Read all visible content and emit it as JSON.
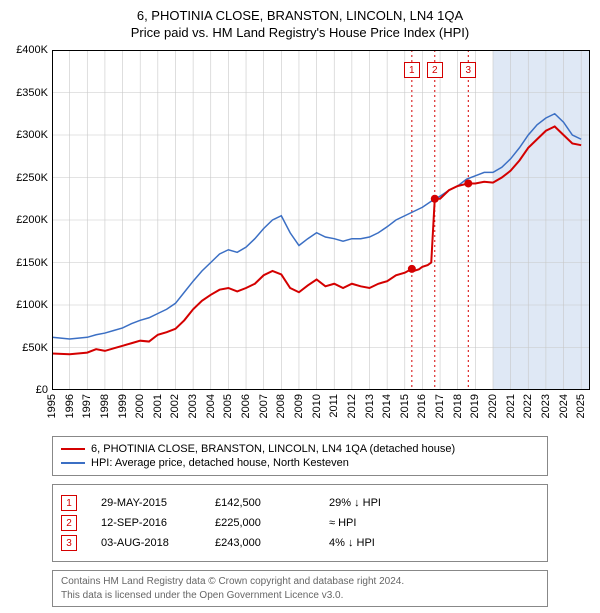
{
  "title": {
    "line1": "6, PHOTINIA CLOSE, BRANSTON, LINCOLN, LN4 1QA",
    "line2": "Price paid vs. HM Land Registry's House Price Index (HPI)"
  },
  "chart": {
    "type": "line",
    "background_color": "#ffffff",
    "grid_color": "#c8c8c8",
    "border_color": "#000000",
    "vband_color": "#dfe8f5",
    "vband_start": 2020,
    "vband_end": 2025.5,
    "xlim": [
      1995,
      2025.5
    ],
    "ylim": [
      0,
      400000
    ],
    "ytick_step": 50000,
    "yticks": [
      "£0",
      "£50K",
      "£100K",
      "£150K",
      "£200K",
      "£250K",
      "£300K",
      "£350K",
      "£400K"
    ],
    "xticks": [
      1995,
      1996,
      1997,
      1998,
      1999,
      2000,
      2001,
      2002,
      2003,
      2004,
      2005,
      2006,
      2007,
      2008,
      2009,
      2010,
      2011,
      2012,
      2013,
      2014,
      2015,
      2016,
      2017,
      2018,
      2019,
      2020,
      2021,
      2022,
      2023,
      2024,
      2025
    ],
    "series": [
      {
        "name": "price_paid",
        "label": "6, PHOTINIA CLOSE, BRANSTON, LINCOLN, LN4 1QA (detached house)",
        "color": "#d40000",
        "width": 2,
        "points": [
          [
            1995,
            43000
          ],
          [
            1996,
            42000
          ],
          [
            1997,
            44000
          ],
          [
            1997.5,
            48000
          ],
          [
            1998,
            46000
          ],
          [
            1998.5,
            49000
          ],
          [
            1999,
            52000
          ],
          [
            1999.5,
            55000
          ],
          [
            2000,
            58000
          ],
          [
            2000.5,
            57000
          ],
          [
            2001,
            65000
          ],
          [
            2001.5,
            68000
          ],
          [
            2002,
            72000
          ],
          [
            2002.5,
            82000
          ],
          [
            2003,
            95000
          ],
          [
            2003.5,
            105000
          ],
          [
            2004,
            112000
          ],
          [
            2004.5,
            118000
          ],
          [
            2005,
            120000
          ],
          [
            2005.5,
            116000
          ],
          [
            2006,
            120000
          ],
          [
            2006.5,
            125000
          ],
          [
            2007,
            135000
          ],
          [
            2007.5,
            140000
          ],
          [
            2008,
            136000
          ],
          [
            2008.5,
            120000
          ],
          [
            2009,
            115000
          ],
          [
            2009.5,
            123000
          ],
          [
            2010,
            130000
          ],
          [
            2010.5,
            122000
          ],
          [
            2011,
            125000
          ],
          [
            2011.5,
            120000
          ],
          [
            2012,
            125000
          ],
          [
            2012.5,
            122000
          ],
          [
            2013,
            120000
          ],
          [
            2013.5,
            125000
          ],
          [
            2014,
            128000
          ],
          [
            2014.5,
            135000
          ],
          [
            2015,
            138000
          ],
          [
            2015.4,
            142500
          ],
          [
            2015.5,
            140000
          ],
          [
            2015.8,
            142000
          ],
          [
            2016,
            145000
          ],
          [
            2016.3,
            147000
          ],
          [
            2016.5,
            150000
          ],
          [
            2016.7,
            225000
          ],
          [
            2017,
            225000
          ],
          [
            2017.5,
            235000
          ],
          [
            2018,
            240000
          ],
          [
            2018.6,
            243000
          ],
          [
            2019,
            243000
          ],
          [
            2019.5,
            245000
          ],
          [
            2020,
            244000
          ],
          [
            2020.5,
            250000
          ],
          [
            2021,
            258000
          ],
          [
            2021.5,
            270000
          ],
          [
            2022,
            285000
          ],
          [
            2022.5,
            295000
          ],
          [
            2023,
            305000
          ],
          [
            2023.5,
            310000
          ],
          [
            2024,
            300000
          ],
          [
            2024.5,
            290000
          ],
          [
            2025,
            288000
          ]
        ]
      },
      {
        "name": "hpi",
        "label": "HPI: Average price, detached house, North Kesteven",
        "color": "#3b6fc4",
        "width": 1.5,
        "points": [
          [
            1995,
            62000
          ],
          [
            1996,
            60000
          ],
          [
            1997,
            62000
          ],
          [
            1997.5,
            65000
          ],
          [
            1998,
            67000
          ],
          [
            1998.5,
            70000
          ],
          [
            1999,
            73000
          ],
          [
            1999.5,
            78000
          ],
          [
            2000,
            82000
          ],
          [
            2000.5,
            85000
          ],
          [
            2001,
            90000
          ],
          [
            2001.5,
            95000
          ],
          [
            2002,
            102000
          ],
          [
            2002.5,
            115000
          ],
          [
            2003,
            128000
          ],
          [
            2003.5,
            140000
          ],
          [
            2004,
            150000
          ],
          [
            2004.5,
            160000
          ],
          [
            2005,
            165000
          ],
          [
            2005.5,
            162000
          ],
          [
            2006,
            168000
          ],
          [
            2006.5,
            178000
          ],
          [
            2007,
            190000
          ],
          [
            2007.5,
            200000
          ],
          [
            2008,
            205000
          ],
          [
            2008.5,
            185000
          ],
          [
            2009,
            170000
          ],
          [
            2009.5,
            178000
          ],
          [
            2010,
            185000
          ],
          [
            2010.5,
            180000
          ],
          [
            2011,
            178000
          ],
          [
            2011.5,
            175000
          ],
          [
            2012,
            178000
          ],
          [
            2012.5,
            178000
          ],
          [
            2013,
            180000
          ],
          [
            2013.5,
            185000
          ],
          [
            2014,
            192000
          ],
          [
            2014.5,
            200000
          ],
          [
            2015,
            205000
          ],
          [
            2015.5,
            210000
          ],
          [
            2016,
            215000
          ],
          [
            2016.5,
            222000
          ],
          [
            2017,
            228000
          ],
          [
            2017.5,
            235000
          ],
          [
            2018,
            240000
          ],
          [
            2018.5,
            248000
          ],
          [
            2019,
            252000
          ],
          [
            2019.5,
            256000
          ],
          [
            2020,
            256000
          ],
          [
            2020.5,
            262000
          ],
          [
            2021,
            272000
          ],
          [
            2021.5,
            285000
          ],
          [
            2022,
            300000
          ],
          [
            2022.5,
            312000
          ],
          [
            2023,
            320000
          ],
          [
            2023.5,
            325000
          ],
          [
            2024,
            315000
          ],
          [
            2024.5,
            300000
          ],
          [
            2025,
            295000
          ]
        ]
      }
    ],
    "sale_markers": [
      {
        "n": "1",
        "x": 2015.4,
        "y": 142500
      },
      {
        "n": "2",
        "x": 2016.7,
        "y": 225000
      },
      {
        "n": "3",
        "x": 2018.6,
        "y": 243000
      }
    ],
    "marker_dot_color": "#d40000",
    "marker_line_color": "#d40000",
    "marker_label_top_offset": 12
  },
  "legend": {
    "items": [
      {
        "color": "#d40000",
        "label": "6, PHOTINIA CLOSE, BRANSTON, LINCOLN, LN4 1QA (detached house)"
      },
      {
        "color": "#3b6fc4",
        "label": "HPI: Average price, detached house, North Kesteven"
      }
    ]
  },
  "sales_table": {
    "rows": [
      {
        "n": "1",
        "date": "29-MAY-2015",
        "price": "£142,500",
        "delta": "29% ↓ HPI",
        "color": "#d40000"
      },
      {
        "n": "2",
        "date": "12-SEP-2016",
        "price": "£225,000",
        "delta": "≈ HPI",
        "color": "#d40000"
      },
      {
        "n": "3",
        "date": "03-AUG-2018",
        "price": "£243,000",
        "delta": "4% ↓ HPI",
        "color": "#d40000"
      }
    ]
  },
  "footer": {
    "line1": "Contains HM Land Registry data © Crown copyright and database right 2024.",
    "line2": "This data is licensed under the Open Government Licence v3.0."
  }
}
